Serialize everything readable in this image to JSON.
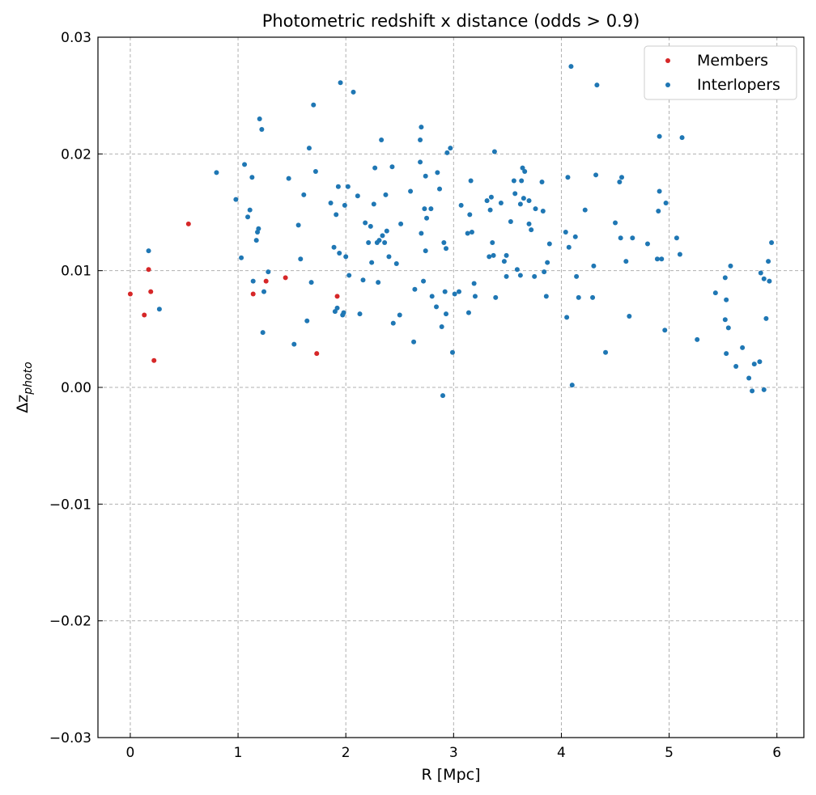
{
  "chart_data": {
    "type": "scatter",
    "title": "Photometric redshift x distance (odds > 0.9)",
    "xlabel": "R [Mpc]",
    "ylabel_main": "Δz",
    "ylabel_sub": "photo",
    "xlim": [
      -0.3,
      6.25
    ],
    "ylim": [
      -0.03,
      0.03
    ],
    "x_ticks": [
      0,
      1,
      2,
      3,
      4,
      5,
      6
    ],
    "x_tick_labels": [
      "0",
      "1",
      "2",
      "3",
      "4",
      "5",
      "6"
    ],
    "y_ticks": [
      -0.03,
      -0.02,
      -0.01,
      0.0,
      0.01,
      0.02,
      0.03
    ],
    "y_tick_labels": [
      "−0.03",
      "−0.02",
      "−0.01",
      "0.00",
      "0.01",
      "0.02",
      "0.03"
    ],
    "grid": true,
    "legend_placement": "top-right",
    "series": [
      {
        "name": "Members",
        "color": "#d62728",
        "points": [
          [
            0.0,
            0.008
          ],
          [
            0.13,
            0.0062
          ],
          [
            0.17,
            0.0101
          ],
          [
            0.19,
            0.0082
          ],
          [
            0.22,
            0.0023
          ],
          [
            0.54,
            0.014
          ],
          [
            1.14,
            0.008
          ],
          [
            1.26,
            0.0091
          ],
          [
            1.44,
            0.0094
          ],
          [
            1.73,
            0.0029
          ],
          [
            1.92,
            0.0078
          ]
        ]
      },
      {
        "name": "Interlopers",
        "color": "#1f77b4",
        "points": [
          [
            0.17,
            0.0117
          ],
          [
            0.27,
            0.0067
          ],
          [
            0.8,
            0.0184
          ],
          [
            0.98,
            0.0161
          ],
          [
            1.03,
            0.0111
          ],
          [
            1.06,
            0.0191
          ],
          [
            1.09,
            0.0146
          ],
          [
            1.11,
            0.0152
          ],
          [
            1.13,
            0.018
          ],
          [
            1.14,
            0.0091
          ],
          [
            1.17,
            0.0126
          ],
          [
            1.18,
            0.0133
          ],
          [
            1.19,
            0.0136
          ],
          [
            1.2,
            0.023
          ],
          [
            1.22,
            0.0221
          ],
          [
            1.23,
            0.0047
          ],
          [
            1.24,
            0.0082
          ],
          [
            1.28,
            0.0099
          ],
          [
            1.47,
            0.0179
          ],
          [
            1.52,
            0.0037
          ],
          [
            1.56,
            0.0139
          ],
          [
            1.58,
            0.011
          ],
          [
            1.61,
            0.0165
          ],
          [
            1.64,
            0.0057
          ],
          [
            1.66,
            0.0205
          ],
          [
            1.68,
            0.009
          ],
          [
            1.7,
            0.0242
          ],
          [
            1.72,
            0.0185
          ],
          [
            1.86,
            0.0158
          ],
          [
            1.89,
            0.012
          ],
          [
            1.9,
            0.0065
          ],
          [
            1.91,
            0.0148
          ],
          [
            1.92,
            0.0068
          ],
          [
            1.93,
            0.0172
          ],
          [
            1.94,
            0.0115
          ],
          [
            1.95,
            0.0261
          ],
          [
            1.97,
            0.0062
          ],
          [
            1.98,
            0.0064
          ],
          [
            1.99,
            0.0156
          ],
          [
            2.0,
            0.0112
          ],
          [
            2.02,
            0.0172
          ],
          [
            2.03,
            0.0096
          ],
          [
            2.07,
            0.0253
          ],
          [
            2.11,
            0.0164
          ],
          [
            2.13,
            0.0063
          ],
          [
            2.16,
            0.0092
          ],
          [
            2.18,
            0.0141
          ],
          [
            2.21,
            0.0124
          ],
          [
            2.23,
            0.0138
          ],
          [
            2.24,
            0.0107
          ],
          [
            2.26,
            0.0157
          ],
          [
            2.27,
            0.0188
          ],
          [
            2.29,
            0.0124
          ],
          [
            2.3,
            0.009
          ],
          [
            2.31,
            0.0126
          ],
          [
            2.33,
            0.0212
          ],
          [
            2.34,
            0.013
          ],
          [
            2.36,
            0.0124
          ],
          [
            2.37,
            0.0165
          ],
          [
            2.38,
            0.0134
          ],
          [
            2.4,
            0.0112
          ],
          [
            2.43,
            0.0189
          ],
          [
            2.44,
            0.0055
          ],
          [
            2.47,
            0.0106
          ],
          [
            2.5,
            0.0062
          ],
          [
            2.51,
            0.014
          ],
          [
            2.6,
            0.0168
          ],
          [
            2.64,
            0.0084
          ],
          [
            2.63,
            0.0039
          ],
          [
            2.69,
            0.0212
          ],
          [
            2.7,
            0.0223
          ],
          [
            2.69,
            0.0193
          ],
          [
            2.7,
            0.0132
          ],
          [
            2.72,
            0.0091
          ],
          [
            2.73,
            0.0153
          ],
          [
            2.74,
            0.0117
          ],
          [
            2.75,
            0.0145
          ],
          [
            2.74,
            0.0181
          ],
          [
            2.79,
            0.0153
          ],
          [
            2.8,
            0.0078
          ],
          [
            2.84,
            0.0069
          ],
          [
            2.85,
            0.0184
          ],
          [
            2.87,
            0.017
          ],
          [
            2.89,
            0.0052
          ],
          [
            2.9,
            -0.0007
          ],
          [
            2.91,
            0.0124
          ],
          [
            2.92,
            0.0082
          ],
          [
            2.93,
            0.0063
          ],
          [
            2.93,
            0.0119
          ],
          [
            2.94,
            0.0201
          ],
          [
            2.97,
            0.0205
          ],
          [
            2.99,
            0.003
          ],
          [
            3.01,
            0.008
          ],
          [
            3.05,
            0.0082
          ],
          [
            3.07,
            0.0156
          ],
          [
            3.13,
            0.0132
          ],
          [
            3.14,
            0.0064
          ],
          [
            3.15,
            0.0148
          ],
          [
            3.16,
            0.0177
          ],
          [
            3.17,
            0.0133
          ],
          [
            3.19,
            0.0089
          ],
          [
            3.2,
            0.0078
          ],
          [
            3.31,
            0.016
          ],
          [
            3.33,
            0.0112
          ],
          [
            3.34,
            0.0152
          ],
          [
            3.35,
            0.0163
          ],
          [
            3.36,
            0.0124
          ],
          [
            3.37,
            0.0113
          ],
          [
            3.38,
            0.0202
          ],
          [
            3.39,
            0.0077
          ],
          [
            3.44,
            0.0158
          ],
          [
            3.47,
            0.0108
          ],
          [
            3.49,
            0.0113
          ],
          [
            3.49,
            0.0095
          ],
          [
            3.53,
            0.0142
          ],
          [
            3.56,
            0.0177
          ],
          [
            3.57,
            0.0166
          ],
          [
            3.59,
            0.0101
          ],
          [
            3.62,
            0.0096
          ],
          [
            3.62,
            0.0157
          ],
          [
            3.63,
            0.0177
          ],
          [
            3.64,
            0.0188
          ],
          [
            3.65,
            0.0162
          ],
          [
            3.66,
            0.0185
          ],
          [
            3.7,
            0.016
          ],
          [
            3.7,
            0.014
          ],
          [
            3.72,
            0.0135
          ],
          [
            3.75,
            0.0095
          ],
          [
            3.76,
            0.0153
          ],
          [
            3.82,
            0.0176
          ],
          [
            3.83,
            0.0151
          ],
          [
            3.84,
            0.0099
          ],
          [
            3.86,
            0.0078
          ],
          [
            3.87,
            0.0107
          ],
          [
            3.89,
            0.0123
          ],
          [
            4.04,
            0.0133
          ],
          [
            4.05,
            0.006
          ],
          [
            4.06,
            0.018
          ],
          [
            4.07,
            0.012
          ],
          [
            4.09,
            0.0275
          ],
          [
            4.1,
            0.0002
          ],
          [
            4.13,
            0.0129
          ],
          [
            4.14,
            0.0095
          ],
          [
            4.16,
            0.0077
          ],
          [
            4.22,
            0.0152
          ],
          [
            4.29,
            0.0077
          ],
          [
            4.3,
            0.0104
          ],
          [
            4.32,
            0.0182
          ],
          [
            4.33,
            0.0259
          ],
          [
            4.41,
            0.003
          ],
          [
            4.5,
            0.0141
          ],
          [
            4.54,
            0.0176
          ],
          [
            4.55,
            0.0128
          ],
          [
            4.56,
            0.018
          ],
          [
            4.6,
            0.0108
          ],
          [
            4.63,
            0.0061
          ],
          [
            4.66,
            0.0128
          ],
          [
            4.8,
            0.0123
          ],
          [
            4.89,
            0.011
          ],
          [
            4.9,
            0.0151
          ],
          [
            4.91,
            0.0168
          ],
          [
            4.91,
            0.0215
          ],
          [
            4.93,
            0.011
          ],
          [
            4.96,
            0.0049
          ],
          [
            4.97,
            0.0158
          ],
          [
            5.07,
            0.0128
          ],
          [
            5.1,
            0.0114
          ],
          [
            5.12,
            0.0214
          ],
          [
            5.26,
            0.0041
          ],
          [
            5.43,
            0.0081
          ],
          [
            5.52,
            0.0094
          ],
          [
            5.53,
            0.0075
          ],
          [
            5.52,
            0.0058
          ],
          [
            5.53,
            0.0029
          ],
          [
            5.55,
            0.0051
          ],
          [
            5.57,
            0.0104
          ],
          [
            5.62,
            0.0018
          ],
          [
            5.68,
            0.0034
          ],
          [
            5.74,
            0.0008
          ],
          [
            5.77,
            -0.0003
          ],
          [
            5.79,
            0.002
          ],
          [
            5.84,
            0.0022
          ],
          [
            5.85,
            0.0098
          ],
          [
            5.88,
            0.0093
          ],
          [
            5.88,
            -0.0002
          ],
          [
            5.9,
            0.0059
          ],
          [
            5.92,
            0.0108
          ],
          [
            5.93,
            0.0091
          ],
          [
            5.95,
            0.0124
          ]
        ]
      }
    ]
  }
}
